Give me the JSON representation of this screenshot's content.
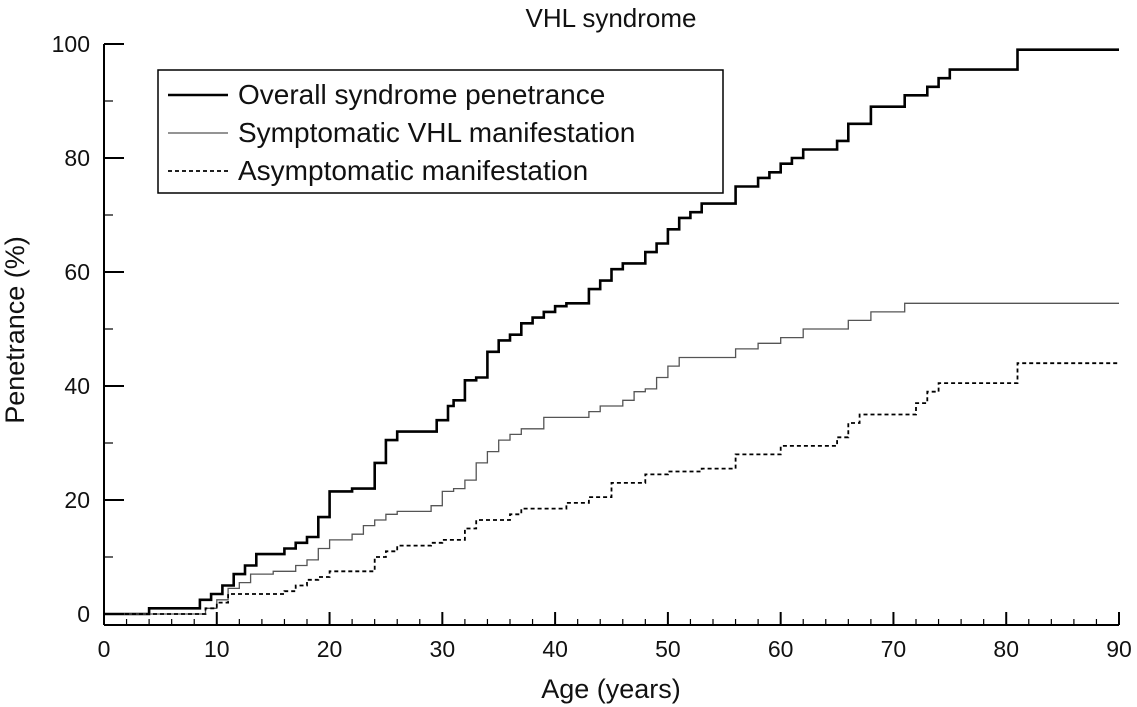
{
  "chart_data": {
    "type": "line",
    "step": true,
    "title": "VHL syndrome",
    "xlabel": "Age (years)",
    "ylabel": "Penetrance (%)",
    "xlim": [
      0,
      90
    ],
    "ylim": [
      0,
      100
    ],
    "xticks": [
      0,
      10,
      20,
      30,
      40,
      50,
      60,
      70,
      80,
      90
    ],
    "yticks": [
      0,
      20,
      40,
      60,
      80,
      100
    ],
    "grid": false,
    "legend_position": "top-left",
    "series": [
      {
        "name": "Overall syndrome penetrance",
        "style": "solid-thick",
        "color": "#000000",
        "points": [
          [
            0,
            0
          ],
          [
            4,
            0
          ],
          [
            4,
            1
          ],
          [
            8.5,
            1
          ],
          [
            8.5,
            2.5
          ],
          [
            9.5,
            2.5
          ],
          [
            9.5,
            3.5
          ],
          [
            10.5,
            3.5
          ],
          [
            10.5,
            5
          ],
          [
            11.5,
            5
          ],
          [
            11.5,
            7
          ],
          [
            12.5,
            7
          ],
          [
            12.5,
            8.5
          ],
          [
            13.5,
            8.5
          ],
          [
            13.5,
            10.5
          ],
          [
            16,
            10.5
          ],
          [
            16,
            11.5
          ],
          [
            17,
            11.5
          ],
          [
            17,
            12.5
          ],
          [
            18,
            12.5
          ],
          [
            18,
            13.5
          ],
          [
            19,
            13.5
          ],
          [
            19,
            17
          ],
          [
            20,
            17
          ],
          [
            20,
            21.5
          ],
          [
            22,
            21.5
          ],
          [
            22,
            22
          ],
          [
            24,
            22
          ],
          [
            24,
            26.5
          ],
          [
            25,
            26.5
          ],
          [
            25,
            30.5
          ],
          [
            26,
            30.5
          ],
          [
            26,
            32
          ],
          [
            29.5,
            32
          ],
          [
            29.5,
            34
          ],
          [
            30.5,
            34
          ],
          [
            30.5,
            36.5
          ],
          [
            31,
            36.5
          ],
          [
            31,
            37.5
          ],
          [
            32,
            37.5
          ],
          [
            32,
            41
          ],
          [
            33,
            41
          ],
          [
            33,
            41.5
          ],
          [
            34,
            41.5
          ],
          [
            34,
            46
          ],
          [
            35,
            46
          ],
          [
            35,
            48
          ],
          [
            36,
            48
          ],
          [
            36,
            49
          ],
          [
            37,
            49
          ],
          [
            37,
            51
          ],
          [
            38,
            51
          ],
          [
            38,
            52
          ],
          [
            39,
            52
          ],
          [
            39,
            53
          ],
          [
            40,
            53
          ],
          [
            40,
            54
          ],
          [
            41,
            54
          ],
          [
            41,
            54.5
          ],
          [
            43,
            54.5
          ],
          [
            43,
            57
          ],
          [
            44,
            57
          ],
          [
            44,
            58.5
          ],
          [
            45,
            58.5
          ],
          [
            45,
            60.5
          ],
          [
            46,
            60.5
          ],
          [
            46,
            61.5
          ],
          [
            48,
            61.5
          ],
          [
            48,
            63.5
          ],
          [
            49,
            63.5
          ],
          [
            49,
            65
          ],
          [
            50,
            65
          ],
          [
            50,
            67.5
          ],
          [
            51,
            67.5
          ],
          [
            51,
            69.5
          ],
          [
            52,
            69.5
          ],
          [
            52,
            70.5
          ],
          [
            53,
            70.5
          ],
          [
            53,
            72
          ],
          [
            56,
            72
          ],
          [
            56,
            75
          ],
          [
            58,
            75
          ],
          [
            58,
            76.5
          ],
          [
            59,
            76.5
          ],
          [
            59,
            77.5
          ],
          [
            60,
            77.5
          ],
          [
            60,
            79
          ],
          [
            61,
            79
          ],
          [
            61,
            80
          ],
          [
            62,
            80
          ],
          [
            62,
            81.5
          ],
          [
            65,
            81.5
          ],
          [
            65,
            83
          ],
          [
            66,
            83
          ],
          [
            66,
            86
          ],
          [
            68,
            86
          ],
          [
            68,
            89
          ],
          [
            71,
            89
          ],
          [
            71,
            91
          ],
          [
            73,
            91
          ],
          [
            73,
            92.5
          ],
          [
            74,
            92.5
          ],
          [
            74,
            94
          ],
          [
            75,
            94
          ],
          [
            75,
            95.5
          ],
          [
            81,
            95.5
          ],
          [
            81,
            99
          ],
          [
            90,
            99
          ]
        ]
      },
      {
        "name": "Symptomatic VHL manifestation",
        "style": "solid-thin",
        "color": "#555555",
        "points": [
          [
            0,
            0
          ],
          [
            9,
            0
          ],
          [
            9,
            1
          ],
          [
            10,
            1
          ],
          [
            10,
            2.5
          ],
          [
            11,
            2.5
          ],
          [
            11,
            4.5
          ],
          [
            12,
            4.5
          ],
          [
            12,
            5.5
          ],
          [
            13,
            5.5
          ],
          [
            13,
            7
          ],
          [
            15,
            7
          ],
          [
            15,
            7.5
          ],
          [
            17,
            7.5
          ],
          [
            17,
            8.5
          ],
          [
            18,
            8.5
          ],
          [
            18,
            9.5
          ],
          [
            19,
            9.5
          ],
          [
            19,
            11.5
          ],
          [
            20,
            11.5
          ],
          [
            20,
            13
          ],
          [
            22,
            13
          ],
          [
            22,
            14
          ],
          [
            23,
            14
          ],
          [
            23,
            15.5
          ],
          [
            24,
            15.5
          ],
          [
            24,
            16.5
          ],
          [
            25,
            16.5
          ],
          [
            25,
            17.5
          ],
          [
            26,
            17.5
          ],
          [
            26,
            18
          ],
          [
            29,
            18
          ],
          [
            29,
            19
          ],
          [
            30,
            19
          ],
          [
            30,
            21.5
          ],
          [
            31,
            21.5
          ],
          [
            31,
            22
          ],
          [
            32,
            22
          ],
          [
            32,
            23.5
          ],
          [
            33,
            23.5
          ],
          [
            33,
            26.5
          ],
          [
            34,
            26.5
          ],
          [
            34,
            28.5
          ],
          [
            35,
            28.5
          ],
          [
            35,
            30.5
          ],
          [
            36,
            30.5
          ],
          [
            36,
            31.5
          ],
          [
            37,
            31.5
          ],
          [
            37,
            32.5
          ],
          [
            39,
            32.5
          ],
          [
            39,
            34.5
          ],
          [
            43,
            34.5
          ],
          [
            43,
            35.5
          ],
          [
            44,
            35.5
          ],
          [
            44,
            36.5
          ],
          [
            46,
            36.5
          ],
          [
            46,
            37.5
          ],
          [
            47,
            37.5
          ],
          [
            47,
            39
          ],
          [
            48,
            39
          ],
          [
            48,
            39.5
          ],
          [
            49,
            39.5
          ],
          [
            49,
            41.5
          ],
          [
            50,
            41.5
          ],
          [
            50,
            43.5
          ],
          [
            51,
            43.5
          ],
          [
            51,
            45
          ],
          [
            56,
            45
          ],
          [
            56,
            46.5
          ],
          [
            58,
            46.5
          ],
          [
            58,
            47.5
          ],
          [
            60,
            47.5
          ],
          [
            60,
            48.5
          ],
          [
            62,
            48.5
          ],
          [
            62,
            50
          ],
          [
            66,
            50
          ],
          [
            66,
            51.5
          ],
          [
            68,
            51.5
          ],
          [
            68,
            53
          ],
          [
            71,
            53
          ],
          [
            71,
            54.5
          ],
          [
            90,
            54.5
          ]
        ]
      },
      {
        "name": "Asymptomatic manifestation",
        "style": "dotted",
        "color": "#000000",
        "points": [
          [
            0,
            0
          ],
          [
            9,
            0
          ],
          [
            9,
            1
          ],
          [
            10,
            1
          ],
          [
            10,
            2
          ],
          [
            11,
            2
          ],
          [
            11,
            3.5
          ],
          [
            16,
            3.5
          ],
          [
            16,
            4
          ],
          [
            17,
            4
          ],
          [
            17,
            5
          ],
          [
            18,
            5
          ],
          [
            18,
            6
          ],
          [
            19,
            6
          ],
          [
            19,
            6.5
          ],
          [
            20,
            6.5
          ],
          [
            20,
            7.5
          ],
          [
            24,
            7.5
          ],
          [
            24,
            10
          ],
          [
            25,
            10
          ],
          [
            25,
            11
          ],
          [
            26,
            11
          ],
          [
            26,
            12
          ],
          [
            29,
            12
          ],
          [
            29,
            12.5
          ],
          [
            30,
            12.5
          ],
          [
            30,
            13
          ],
          [
            32,
            13
          ],
          [
            32,
            15
          ],
          [
            33,
            15
          ],
          [
            33,
            16.5
          ],
          [
            36,
            16.5
          ],
          [
            36,
            17.5
          ],
          [
            37,
            17.5
          ],
          [
            37,
            18.5
          ],
          [
            41,
            18.5
          ],
          [
            41,
            19.5
          ],
          [
            43,
            19.5
          ],
          [
            43,
            20.5
          ],
          [
            45,
            20.5
          ],
          [
            45,
            23
          ],
          [
            48,
            23
          ],
          [
            48,
            24.5
          ],
          [
            50,
            24.5
          ],
          [
            50,
            25
          ],
          [
            53,
            25
          ],
          [
            53,
            25.5
          ],
          [
            56,
            25.5
          ],
          [
            56,
            28
          ],
          [
            60,
            28
          ],
          [
            60,
            29.5
          ],
          [
            65,
            29.5
          ],
          [
            65,
            31
          ],
          [
            66,
            31
          ],
          [
            66,
            33.5
          ],
          [
            67,
            33.5
          ],
          [
            67,
            35
          ],
          [
            72,
            35
          ],
          [
            72,
            37
          ],
          [
            73,
            37
          ],
          [
            73,
            39
          ],
          [
            74,
            39
          ],
          [
            74,
            40.5
          ],
          [
            81,
            40.5
          ],
          [
            81,
            44
          ],
          [
            90,
            44
          ]
        ]
      }
    ]
  }
}
